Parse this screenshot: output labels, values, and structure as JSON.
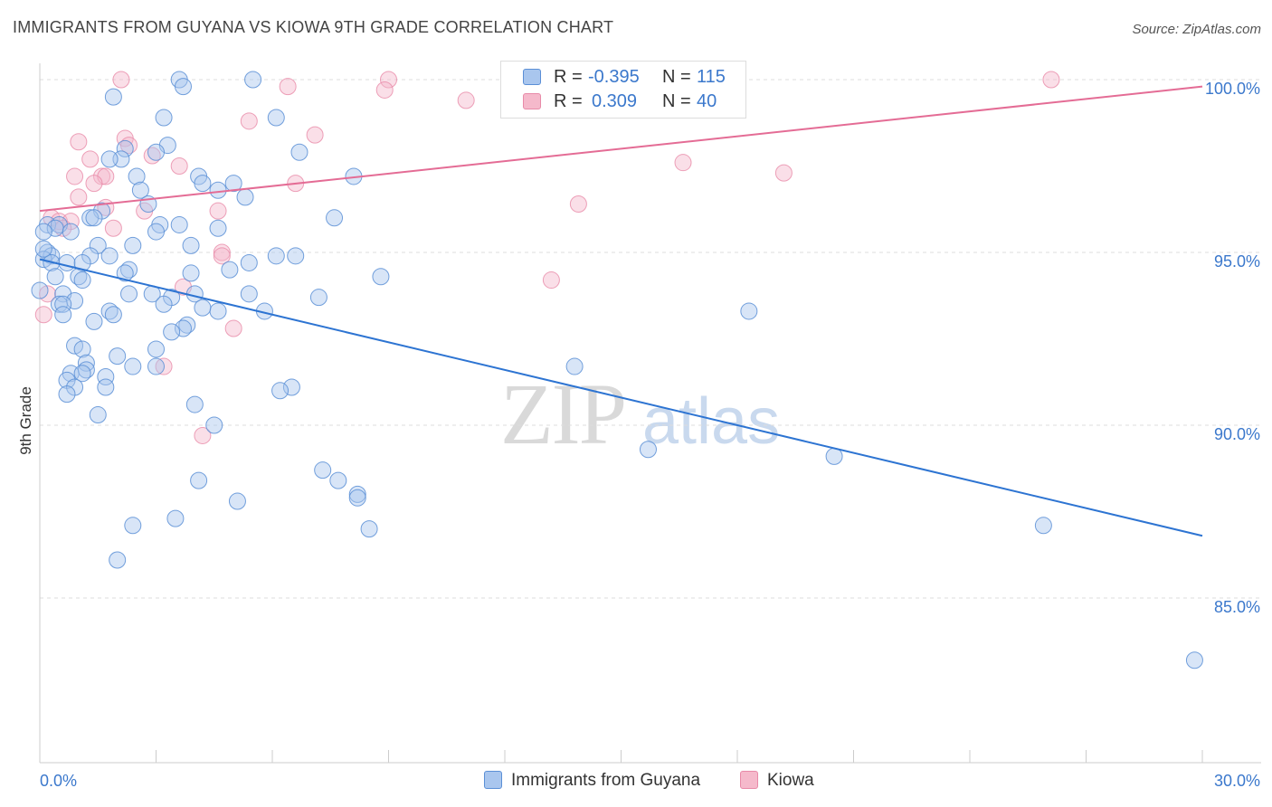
{
  "title": "IMMIGRANTS FROM GUYANA VS KIOWA 9TH GRADE CORRELATION CHART",
  "source": "Source: ZipAtlas.com",
  "watermark": {
    "zip": "ZIP",
    "atlas": "atlas"
  },
  "legend": {
    "rows": [
      {
        "r_label": "R =",
        "r_value": "-0.395",
        "n_label": "N =",
        "n_value": "115"
      },
      {
        "r_label": "R =",
        "r_value": "0.309",
        "n_label": "N =",
        "n_value": "40"
      }
    ]
  },
  "bottom_legend": [
    "Immigrants from Guyana",
    "Kiowa"
  ],
  "colors": {
    "blue_fill": "#a9c6ee",
    "blue_stroke": "#5b8fd6",
    "blue_line": "#2d74d2",
    "pink_fill": "#f5b9cb",
    "pink_stroke": "#e88aa8",
    "pink_line": "#e46c95",
    "tick": "#3b78cc"
  },
  "chart_data": {
    "type": "scatter",
    "title": "IMMIGRANTS FROM GUYANA VS KIOWA 9TH GRADE CORRELATION CHART",
    "xlabel": "",
    "ylabel": "9th Grade",
    "xlim": [
      0,
      30
    ],
    "ylim": [
      80.4,
      100.4
    ],
    "x_tick_labels": [
      {
        "value": 0,
        "label": "0.0%"
      },
      {
        "value": 30,
        "label": "30.0%"
      }
    ],
    "y_tick_labels": [
      {
        "value": 100,
        "label": "100.0%"
      },
      {
        "value": 95,
        "label": "95.0%"
      },
      {
        "value": 90,
        "label": "90.0%"
      },
      {
        "value": 85,
        "label": "85.0%"
      }
    ],
    "y_gridlines": [
      100,
      95,
      90,
      85
    ],
    "x_ticks_minor": [
      3,
      6,
      9,
      12,
      15,
      18,
      21,
      24,
      27,
      30
    ],
    "series": [
      {
        "name": "Immigrants from Guyana",
        "R": -0.395,
        "N": 115,
        "trend": {
          "x0": 0,
          "y0": 94.8,
          "x1": 30,
          "y1": 86.8
        },
        "points": [
          [
            3.6,
            100.0
          ],
          [
            5.5,
            100.0
          ],
          [
            3.7,
            99.8
          ],
          [
            1.9,
            99.5
          ],
          [
            3.2,
            98.9
          ],
          [
            6.1,
            98.9
          ],
          [
            3.3,
            98.1
          ],
          [
            2.2,
            98.0
          ],
          [
            3.0,
            97.9
          ],
          [
            6.7,
            97.9
          ],
          [
            2.1,
            97.7
          ],
          [
            1.8,
            97.7
          ],
          [
            2.5,
            97.2
          ],
          [
            4.1,
            97.2
          ],
          [
            8.1,
            97.2
          ],
          [
            4.2,
            97.0
          ],
          [
            5.0,
            97.0
          ],
          [
            2.6,
            96.8
          ],
          [
            4.6,
            96.8
          ],
          [
            5.3,
            96.6
          ],
          [
            2.8,
            96.4
          ],
          [
            1.6,
            96.2
          ],
          [
            1.3,
            96.0
          ],
          [
            1.4,
            96.0
          ],
          [
            7.6,
            96.0
          ],
          [
            0.2,
            95.8
          ],
          [
            0.5,
            95.8
          ],
          [
            0.4,
            95.7
          ],
          [
            3.1,
            95.8
          ],
          [
            3.6,
            95.8
          ],
          [
            4.6,
            95.7
          ],
          [
            0.1,
            95.6
          ],
          [
            3.0,
            95.6
          ],
          [
            3.9,
            95.2
          ],
          [
            1.5,
            95.2
          ],
          [
            2.4,
            95.2
          ],
          [
            0.2,
            95.0
          ],
          [
            0.3,
            94.9
          ],
          [
            1.8,
            94.9
          ],
          [
            1.3,
            94.9
          ],
          [
            6.1,
            94.9
          ],
          [
            6.6,
            94.9
          ],
          [
            0.1,
            94.8
          ],
          [
            0.3,
            94.7
          ],
          [
            0.7,
            94.7
          ],
          [
            1.1,
            94.7
          ],
          [
            5.4,
            94.7
          ],
          [
            3.9,
            94.4
          ],
          [
            4.9,
            94.5
          ],
          [
            2.3,
            94.5
          ],
          [
            2.2,
            94.4
          ],
          [
            0.4,
            94.3
          ],
          [
            1.0,
            94.3
          ],
          [
            8.8,
            94.3
          ],
          [
            1.1,
            94.2
          ],
          [
            0.6,
            93.8
          ],
          [
            2.3,
            93.8
          ],
          [
            2.9,
            93.8
          ],
          [
            3.4,
            93.7
          ],
          [
            4.0,
            93.8
          ],
          [
            5.4,
            93.8
          ],
          [
            7.2,
            93.7
          ],
          [
            0.9,
            93.6
          ],
          [
            0.5,
            93.5
          ],
          [
            0.6,
            93.5
          ],
          [
            3.2,
            93.5
          ],
          [
            1.8,
            93.3
          ],
          [
            1.9,
            93.2
          ],
          [
            4.6,
            93.3
          ],
          [
            5.8,
            93.3
          ],
          [
            18.3,
            93.3
          ],
          [
            0.6,
            93.2
          ],
          [
            1.4,
            93.0
          ],
          [
            3.8,
            92.9
          ],
          [
            3.7,
            92.8
          ],
          [
            3.4,
            92.7
          ],
          [
            0.9,
            92.3
          ],
          [
            1.1,
            92.2
          ],
          [
            3.0,
            92.2
          ],
          [
            2.0,
            92.0
          ],
          [
            1.2,
            91.8
          ],
          [
            3.0,
            91.7
          ],
          [
            2.4,
            91.7
          ],
          [
            13.8,
            91.7
          ],
          [
            0.8,
            91.5
          ],
          [
            1.2,
            91.6
          ],
          [
            1.7,
            91.4
          ],
          [
            1.1,
            91.5
          ],
          [
            0.7,
            91.3
          ],
          [
            0.9,
            91.1
          ],
          [
            1.7,
            91.1
          ],
          [
            6.5,
            91.1
          ],
          [
            6.2,
            91.0
          ],
          [
            0.7,
            90.9
          ],
          [
            4.0,
            90.6
          ],
          [
            1.5,
            90.3
          ],
          [
            4.5,
            90.0
          ],
          [
            15.7,
            89.3
          ],
          [
            20.5,
            89.1
          ],
          [
            7.3,
            88.7
          ],
          [
            7.7,
            88.4
          ],
          [
            4.1,
            88.4
          ],
          [
            8.2,
            88.0
          ],
          [
            8.2,
            87.9
          ],
          [
            5.1,
            87.8
          ],
          [
            3.5,
            87.3
          ],
          [
            2.4,
            87.1
          ],
          [
            8.5,
            87.0
          ],
          [
            25.9,
            87.1
          ],
          [
            2.0,
            86.1
          ],
          [
            29.8,
            83.2
          ],
          [
            0.0,
            93.9
          ],
          [
            0.1,
            95.1
          ],
          [
            4.2,
            93.4
          ],
          [
            0.8,
            95.6
          ]
        ]
      },
      {
        "name": "Kiowa",
        "R": 0.309,
        "N": 40,
        "trend": {
          "x0": 0,
          "y0": 96.2,
          "x1": 30,
          "y1": 99.8
        },
        "points": [
          [
            2.1,
            100.0
          ],
          [
            9.0,
            100.0
          ],
          [
            26.1,
            100.0
          ],
          [
            6.4,
            99.8
          ],
          [
            8.9,
            99.7
          ],
          [
            11.0,
            99.4
          ],
          [
            5.4,
            98.8
          ],
          [
            7.1,
            98.4
          ],
          [
            2.2,
            98.3
          ],
          [
            1.0,
            98.2
          ],
          [
            2.3,
            98.1
          ],
          [
            2.9,
            97.8
          ],
          [
            1.3,
            97.7
          ],
          [
            3.6,
            97.5
          ],
          [
            16.6,
            97.6
          ],
          [
            19.2,
            97.3
          ],
          [
            0.9,
            97.2
          ],
          [
            1.6,
            97.2
          ],
          [
            1.7,
            97.2
          ],
          [
            1.4,
            97.0
          ],
          [
            6.6,
            97.0
          ],
          [
            1.0,
            96.6
          ],
          [
            13.9,
            96.4
          ],
          [
            1.7,
            96.3
          ],
          [
            2.7,
            96.2
          ],
          [
            4.6,
            96.2
          ],
          [
            0.3,
            96.0
          ],
          [
            0.5,
            95.9
          ],
          [
            0.8,
            95.9
          ],
          [
            1.9,
            95.7
          ],
          [
            0.6,
            95.7
          ],
          [
            13.2,
            94.2
          ],
          [
            3.7,
            94.0
          ],
          [
            0.2,
            93.8
          ],
          [
            0.1,
            93.2
          ],
          [
            5.0,
            92.8
          ],
          [
            3.2,
            91.7
          ],
          [
            4.2,
            89.7
          ],
          [
            4.7,
            95.0
          ],
          [
            4.7,
            94.9
          ]
        ]
      }
    ]
  }
}
